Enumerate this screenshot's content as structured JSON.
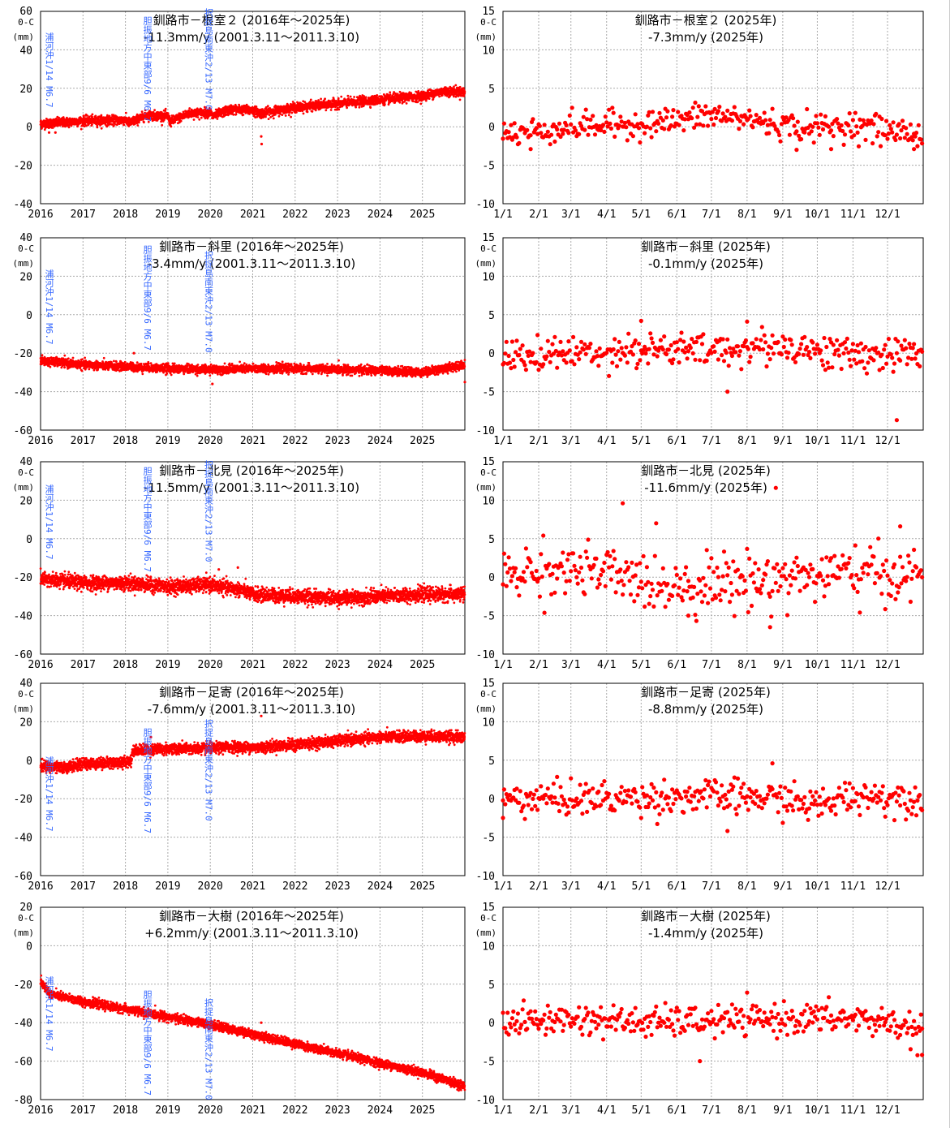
{
  "quakes": [
    {
      "name": "浦河沖",
      "date": "1/14 M6.7",
      "t": 2016.04
    },
    {
      "name": "胆振地方中東部",
      "date": "9/6 M6.7",
      "t": 2018.68
    },
    {
      "name": "択捉島南東沖",
      "date": "2/13 M7.0",
      "t": 2020.12
    }
  ],
  "axis_unit": {
    "line1": "0-C",
    "line2": "(mm)"
  },
  "chart_data": [
    {
      "type": "scatter",
      "side": "left",
      "title": "釧路市－根室２ (2016年～2025年)",
      "subtitle": "-11.3mm/y (2001.3.11～2011.3.10)",
      "xlim": [
        2016,
        2026
      ],
      "ylim": [
        -40,
        60
      ],
      "yticks": [
        60,
        40,
        20,
        0,
        -20,
        -40
      ],
      "xticks": [
        "2016",
        "2017",
        "2018",
        "2019",
        "2020",
        "2021",
        "2022",
        "2023",
        "2024",
        "2025"
      ],
      "trend": [
        [
          2016,
          1.5
        ],
        [
          2017,
          3
        ],
        [
          2018,
          3.5
        ],
        [
          2018.1,
          2
        ],
        [
          2018.5,
          6
        ],
        [
          2019,
          5.5
        ],
        [
          2019.05,
          2.5
        ],
        [
          2019.5,
          7
        ],
        [
          2020,
          7.5
        ],
        [
          2020.05,
          5.5
        ],
        [
          2020.5,
          9
        ],
        [
          2021,
          8.5
        ],
        [
          2021.2,
          7
        ],
        [
          2022,
          10
        ],
        [
          2023,
          12
        ],
        [
          2024,
          14
        ],
        [
          2025,
          16
        ],
        [
          2025.5,
          18.5
        ],
        [
          2026,
          18
        ]
      ],
      "noise": 1.2,
      "outliers": [
        [
          2021.2,
          -5
        ],
        [
          2021.21,
          -9
        ],
        [
          2016.2,
          -3
        ],
        [
          2016.35,
          -3
        ]
      ]
    },
    {
      "type": "scatter",
      "side": "right",
      "title": "釧路市－根室２ (2025年)",
      "subtitle": "-7.3mm/y  (2025年)",
      "xlim": [
        1,
        366
      ],
      "ylim": [
        -10,
        15
      ],
      "yticks": [
        15,
        10,
        5,
        0,
        -5,
        -10
      ],
      "xticks": [
        "1/1",
        "2/1",
        "3/1",
        "4/1",
        "5/1",
        "6/1",
        "7/1",
        "8/1",
        "9/1",
        "10/1",
        "11/1",
        "12/1"
      ],
      "trend": [
        [
          1,
          -1
        ],
        [
          32,
          -0.5
        ],
        [
          60,
          0
        ],
        [
          91,
          0.2
        ],
        [
          121,
          0.4
        ],
        [
          152,
          0.8
        ],
        [
          182,
          1.5
        ],
        [
          213,
          1
        ],
        [
          244,
          0.2
        ],
        [
          274,
          -0.2
        ],
        [
          305,
          0.3
        ],
        [
          335,
          -0.5
        ],
        [
          365,
          -1
        ]
      ],
      "noise": 0.9,
      "outliers": [
        [
          25,
          -2.9
        ],
        [
          256,
          -3
        ],
        [
          286,
          -2.9
        ],
        [
          358,
          -2.9
        ]
      ]
    },
    {
      "type": "scatter",
      "side": "left",
      "title": "釧路市－斜里 (2016年～2025年)",
      "subtitle": "-3.4mm/y (2001.3.11～2011.3.10)",
      "xlim": [
        2016,
        2026
      ],
      "ylim": [
        -60,
        40
      ],
      "yticks": [
        40,
        20,
        0,
        -20,
        -40,
        -60
      ],
      "xticks": [
        "2016",
        "2017",
        "2018",
        "2019",
        "2020",
        "2021",
        "2022",
        "2023",
        "2024",
        "2025"
      ],
      "trend": [
        [
          2016,
          -24
        ],
        [
          2017,
          -26
        ],
        [
          2018,
          -27
        ],
        [
          2019,
          -28
        ],
        [
          2020,
          -28.5
        ],
        [
          2021,
          -28
        ],
        [
          2022,
          -28
        ],
        [
          2023,
          -28.5
        ],
        [
          2024,
          -29
        ],
        [
          2025,
          -30
        ],
        [
          2026,
          -26
        ]
      ],
      "noise": 1.1,
      "outliers": [
        [
          2018.2,
          -20
        ],
        [
          2020.05,
          -36
        ],
        [
          2026,
          -35
        ]
      ]
    },
    {
      "type": "scatter",
      "side": "right",
      "title": "釧路市－斜里 (2025年)",
      "subtitle": "-0.1mm/y  (2025年)",
      "xlim": [
        1,
        366
      ],
      "ylim": [
        -10,
        15
      ],
      "yticks": [
        15,
        10,
        5,
        0,
        -5,
        -10
      ],
      "xticks": [
        "1/1",
        "2/1",
        "3/1",
        "4/1",
        "5/1",
        "6/1",
        "7/1",
        "8/1",
        "9/1",
        "10/1",
        "11/1",
        "12/1"
      ],
      "trend": [
        [
          1,
          -0.5
        ],
        [
          60,
          0
        ],
        [
          121,
          0.5
        ],
        [
          182,
          0.3
        ],
        [
          244,
          1
        ],
        [
          305,
          -0.3
        ],
        [
          365,
          0
        ]
      ],
      "noise": 1.1,
      "outliers": [
        [
          121,
          4.2
        ],
        [
          196,
          -5
        ],
        [
          213,
          4.1
        ],
        [
          343,
          -8.7
        ]
      ]
    },
    {
      "type": "scatter",
      "side": "left",
      "title": "釧路市－北見 (2016年～2025年)",
      "subtitle": "-11.5mm/y (2001.3.11～2011.3.10)",
      "xlim": [
        2016,
        2026
      ],
      "ylim": [
        -60,
        40
      ],
      "yticks": [
        40,
        20,
        0,
        -20,
        -40,
        -60
      ],
      "xticks": [
        "2016",
        "2017",
        "2018",
        "2019",
        "2020",
        "2021",
        "2022",
        "2023",
        "2024",
        "2025"
      ],
      "trend": [
        [
          2016,
          -21
        ],
        [
          2017,
          -23
        ],
        [
          2018,
          -23
        ],
        [
          2019,
          -25
        ],
        [
          2020,
          -24
        ],
        [
          2020.8,
          -27
        ],
        [
          2021,
          -29
        ],
        [
          2022,
          -30
        ],
        [
          2023,
          -31
        ],
        [
          2024,
          -30
        ],
        [
          2025,
          -29
        ],
        [
          2026,
          -29
        ]
      ],
      "noise": 1.8,
      "outliers": [
        [
          2020.2,
          -16
        ],
        [
          2020.65,
          -15
        ]
      ]
    },
    {
      "type": "scatter",
      "side": "right",
      "title": "釧路市－北見 (2025年)",
      "subtitle": "-11.6mm/y  (2025年)",
      "xlim": [
        1,
        366
      ],
      "ylim": [
        -10,
        15
      ],
      "yticks": [
        15,
        10,
        5,
        0,
        -5,
        -10
      ],
      "xticks": [
        "1/1",
        "2/1",
        "3/1",
        "4/1",
        "5/1",
        "6/1",
        "7/1",
        "8/1",
        "9/1",
        "10/1",
        "11/1",
        "12/1"
      ],
      "trend": [
        [
          1,
          0.5
        ],
        [
          60,
          1
        ],
        [
          121,
          -0.5
        ],
        [
          152,
          -1
        ],
        [
          213,
          -0.5
        ],
        [
          244,
          0
        ],
        [
          305,
          0.5
        ],
        [
          365,
          0
        ]
      ],
      "noise": 1.8,
      "outliers": [
        [
          105,
          9.6
        ],
        [
          238,
          11.6
        ],
        [
          233,
          -6.5
        ],
        [
          346,
          6.6
        ],
        [
          162,
          -5
        ]
      ]
    },
    {
      "type": "scatter",
      "side": "left",
      "title": "釧路市－足寄 (2016年～2025年)",
      "subtitle": "-7.6mm/y (2001.3.11～2011.3.10)",
      "xlim": [
        2016,
        2026
      ],
      "ylim": [
        -60,
        40
      ],
      "yticks": [
        40,
        20,
        0,
        -20,
        -40,
        -60
      ],
      "xticks": [
        "2016",
        "2017",
        "2018",
        "2019",
        "2020",
        "2021",
        "2022",
        "2023",
        "2024",
        "2025"
      ],
      "trend": [
        [
          2016,
          -3
        ],
        [
          2016.5,
          -4
        ],
        [
          2017,
          -2
        ],
        [
          2018,
          -1
        ],
        [
          2018.15,
          0
        ],
        [
          2018.16,
          5
        ],
        [
          2019,
          6
        ],
        [
          2020,
          6
        ],
        [
          2020.5,
          7
        ],
        [
          2021,
          6.5
        ],
        [
          2022,
          8
        ],
        [
          2023,
          10
        ],
        [
          2024,
          12
        ],
        [
          2025,
          12.5
        ],
        [
          2026,
          12
        ]
      ],
      "noise": 1.4,
      "outliers": [
        [
          2021.2,
          23
        ],
        [
          2018.6,
          12
        ]
      ]
    },
    {
      "type": "scatter",
      "side": "right",
      "title": "釧路市－足寄 (2025年)",
      "subtitle": "-8.8mm/y  (2025年)",
      "xlim": [
        1,
        366
      ],
      "ylim": [
        -10,
        15
      ],
      "yticks": [
        15,
        10,
        5,
        0,
        -5,
        -10
      ],
      "xticks": [
        "1/1",
        "2/1",
        "3/1",
        "4/1",
        "5/1",
        "6/1",
        "7/1",
        "8/1",
        "9/1",
        "10/1",
        "11/1",
        "12/1"
      ],
      "trend": [
        [
          1,
          0
        ],
        [
          91,
          0
        ],
        [
          182,
          0.3
        ],
        [
          244,
          0
        ],
        [
          274,
          -1
        ],
        [
          305,
          0.5
        ],
        [
          365,
          0
        ]
      ],
      "noise": 1.1,
      "outliers": [
        [
          196,
          -4.2
        ],
        [
          235,
          4.6
        ],
        [
          1,
          -2.5
        ]
      ]
    },
    {
      "type": "scatter",
      "side": "left",
      "title": "釧路市－大樹 (2016年～2025年)",
      "subtitle": "+6.2mm/y (2001.3.11～2011.3.10)",
      "xlim": [
        2016,
        2026
      ],
      "ylim": [
        -80,
        20
      ],
      "yticks": [
        20,
        0,
        -20,
        -40,
        -60,
        -80
      ],
      "xticks": [
        "2016",
        "2017",
        "2018",
        "2019",
        "2020",
        "2021",
        "2022",
        "2023",
        "2024",
        "2025"
      ],
      "trend": [
        [
          2016,
          -18
        ],
        [
          2016.2,
          -25
        ],
        [
          2017,
          -29
        ],
        [
          2018,
          -33
        ],
        [
          2019,
          -37
        ],
        [
          2020,
          -41
        ],
        [
          2021,
          -46
        ],
        [
          2022,
          -51
        ],
        [
          2023,
          -56
        ],
        [
          2024,
          -61
        ],
        [
          2025,
          -66
        ],
        [
          2026,
          -73
        ]
      ],
      "noise": 1.1,
      "outliers": [
        [
          2021.2,
          -40
        ]
      ]
    },
    {
      "type": "scatter",
      "side": "right",
      "title": "釧路市－大樹 (2025年)",
      "subtitle": "-1.4mm/y  (2025年)",
      "xlim": [
        1,
        366
      ],
      "ylim": [
        -10,
        15
      ],
      "yticks": [
        15,
        10,
        5,
        0,
        -5,
        -10
      ],
      "xticks": [
        "1/1",
        "2/1",
        "3/1",
        "4/1",
        "5/1",
        "6/1",
        "7/1",
        "8/1",
        "9/1",
        "10/1",
        "11/1",
        "12/1"
      ],
      "trend": [
        [
          1,
          0
        ],
        [
          60,
          0.5
        ],
        [
          121,
          0
        ],
        [
          182,
          0.2
        ],
        [
          244,
          0.5
        ],
        [
          305,
          0.5
        ],
        [
          340,
          0
        ],
        [
          365,
          -1.5
        ]
      ],
      "noise": 1.0,
      "outliers": [
        [
          172,
          -5
        ],
        [
          365,
          -4.2
        ]
      ]
    }
  ]
}
